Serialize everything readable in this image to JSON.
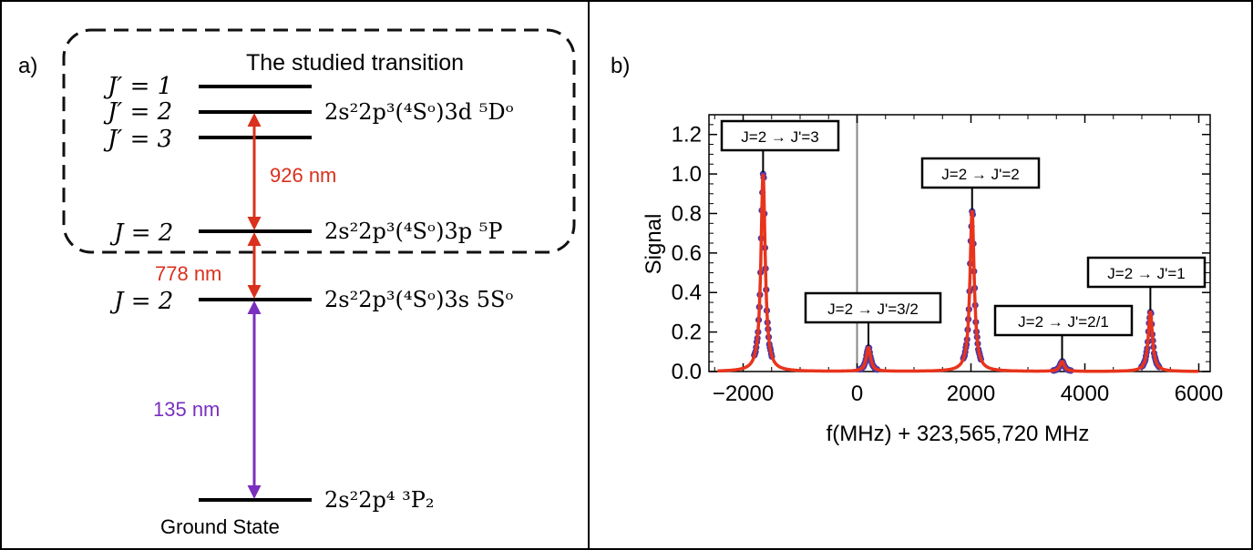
{
  "panel_a": {
    "panel_label": "a)",
    "box_title": "The studied transition",
    "levels": {
      "j1": "J′ = 1",
      "j2p": "J′ = 2",
      "j3": "J′ = 3",
      "j2_3p": "J = 2",
      "j2_3s": "J = 2"
    },
    "configs": {
      "upper": "2s²2p³(⁴Sᵒ)3d ⁵Dᵒ",
      "mid": "2s²2p³(⁴Sᵒ)3p ⁵P",
      "lower": "2s²2p³(⁴Sᵒ)3s 5Sᵒ",
      "ground": "2s²2p⁴ ³P₂"
    },
    "ground_label": "Ground State",
    "transitions": [
      {
        "label": "926 nm",
        "color": "#d9311d"
      },
      {
        "label": "778 nm",
        "color": "#d9311d"
      },
      {
        "label": "135 nm",
        "color": "#7a2fbf"
      }
    ]
  },
  "panel_b": {
    "panel_label": "b)"
  },
  "chart_data": {
    "type": "line",
    "xlabel": "f(MHz) + 323,565,720 MHz",
    "ylabel": "Signal",
    "xlim": [
      -2600,
      6200
    ],
    "ylim": [
      0,
      1.3
    ],
    "xticks": [
      -2000,
      0,
      2000,
      4000,
      6000
    ],
    "xtick_labels": [
      "−2000",
      "0",
      "2000",
      "4000",
      "6000"
    ],
    "yticks": [
      0.0,
      0.2,
      0.4,
      0.6,
      0.8,
      1.0,
      1.2
    ],
    "ytick_labels": [
      "0.0",
      "0.2",
      "0.4",
      "0.6",
      "0.8",
      "1.0",
      "1.2"
    ],
    "vertical_line_x": 0,
    "colors": {
      "data": "#4b3aa8",
      "fit": "#e8341c"
    },
    "peaks": [
      {
        "center": -1650,
        "height": 1.0,
        "width": 90,
        "label": "J=2 → J'=3"
      },
      {
        "center": 200,
        "height": 0.12,
        "width": 90,
        "label": "J=2 → J'=3/2"
      },
      {
        "center": 2020,
        "height": 0.81,
        "width": 90,
        "label": "J=2 → J'=2"
      },
      {
        "center": 3600,
        "height": 0.05,
        "width": 90,
        "label": "J=2 → J'=2/1"
      },
      {
        "center": 5150,
        "height": 0.3,
        "width": 90,
        "label": "J=2 → J'=1"
      }
    ],
    "grid": false
  }
}
